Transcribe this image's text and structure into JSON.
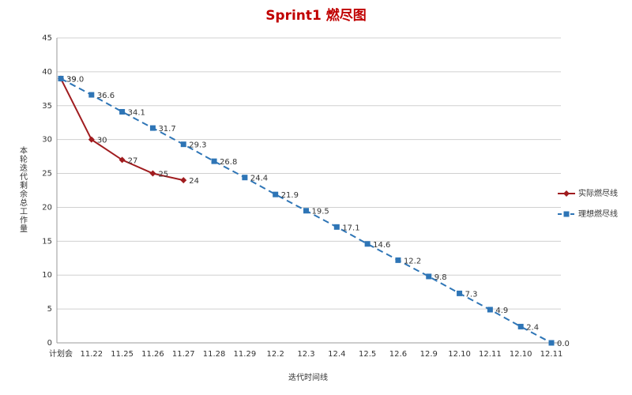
{
  "chart_data": {
    "type": "line",
    "title": "Sprint1 燃尽图",
    "x_label": "迭代时间线",
    "y_label": "本轮迭代剩余总工作量",
    "categories": [
      "计划会",
      "11.22",
      "11.25",
      "11.26",
      "11.27",
      "11.28",
      "11.29",
      "12.2",
      "12.3",
      "12.4",
      "12.5",
      "12.6",
      "12.9",
      "12.10",
      "12.11",
      "12.10",
      "12.11"
    ],
    "series": [
      {
        "name": "实际燃尽线",
        "color": "#a01c1f",
        "marker": "diamond",
        "dashed": false,
        "values": [
          39,
          30,
          27,
          25,
          24,
          null,
          null,
          null,
          null,
          null,
          null,
          null,
          null,
          null,
          null,
          null,
          null
        ]
      },
      {
        "name": "理想燃尽线",
        "color": "#2e75b6",
        "marker": "square",
        "dashed": true,
        "values": [
          39.0,
          36.6,
          34.1,
          31.7,
          29.3,
          26.8,
          24.4,
          21.9,
          19.5,
          17.1,
          14.6,
          12.2,
          9.8,
          7.3,
          4.9,
          2.4,
          0.0
        ],
        "value_labels": [
          "39.0",
          "36.6",
          "34.1",
          "31.7",
          "29.3",
          "26.8",
          "24.4",
          "21.9",
          "19.5",
          "17.1",
          "14.6",
          "12.2",
          "9.8",
          "7.3",
          "4.9",
          "2.4",
          "0.0"
        ]
      }
    ],
    "ylim": [
      0,
      45
    ],
    "yticks": [
      0,
      5,
      10,
      15,
      20,
      25,
      30,
      35,
      40,
      45
    ],
    "grid": true,
    "legend": "right"
  }
}
